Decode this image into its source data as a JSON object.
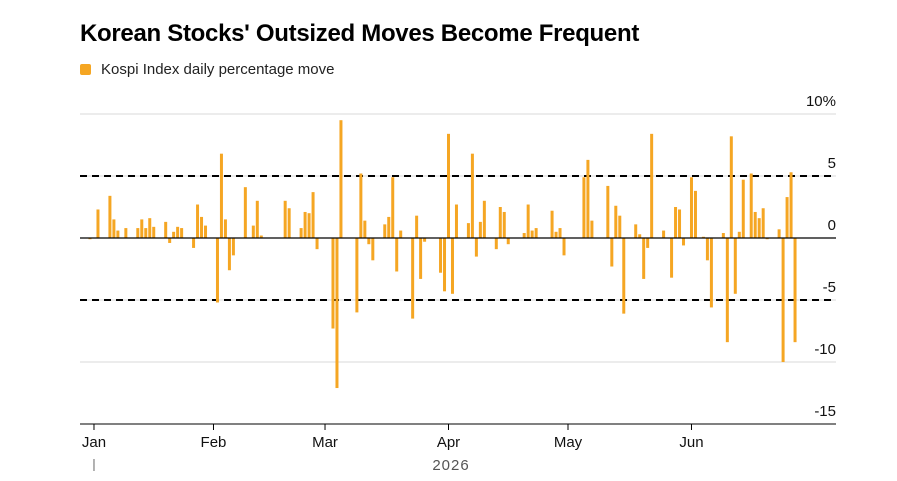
{
  "title": "Korean Stocks' Outsized Moves Become Frequent",
  "legend": [
    {
      "label": "Kospi Index daily percentage move",
      "color": "#f5a623"
    }
  ],
  "chart_data": {
    "type": "bar",
    "title": "Korean Stocks' Outsized Moves Become Frequent",
    "xlabel": "",
    "ylabel": "",
    "series": [
      {
        "name": "Kospi Index daily percentage move",
        "color": "#f5a623"
      }
    ],
    "ylim": [
      -15,
      10
    ],
    "y_ticks": [
      {
        "value": 10,
        "label": "10%"
      },
      {
        "value": 5,
        "label": "5"
      },
      {
        "value": 0,
        "label": "0"
      },
      {
        "value": -5,
        "label": "-5"
      },
      {
        "value": -10,
        "label": "-10"
      },
      {
        "value": -15,
        "label": "-15"
      }
    ],
    "x_ticks": [
      {
        "date": "2026-01-02",
        "label": "Jan"
      },
      {
        "date": "2026-02-01",
        "label": "Feb"
      },
      {
        "date": "2026-03-01",
        "label": "Mar"
      },
      {
        "date": "2026-04-01",
        "label": "Apr"
      },
      {
        "date": "2026-05-01",
        "label": "May"
      },
      {
        "date": "2026-06-01",
        "label": "Jun"
      }
    ],
    "xlim": [
      "2026-01-01",
      "2026-06-30"
    ],
    "x_secondary_label": "2026",
    "reference_lines": [
      5,
      -5
    ],
    "grid": false,
    "legend_position": "top-left",
    "points": [
      [
        "2026-01-01",
        -0.1
      ],
      [
        "2026-01-03",
        2.3
      ],
      [
        "2026-01-06",
        3.4
      ],
      [
        "2026-01-07",
        1.5
      ],
      [
        "2026-01-08",
        0.6
      ],
      [
        "2026-01-10",
        0.8
      ],
      [
        "2026-01-13",
        0.8
      ],
      [
        "2026-01-14",
        1.5
      ],
      [
        "2026-01-15",
        0.8
      ],
      [
        "2026-01-16",
        1.6
      ],
      [
        "2026-01-17",
        0.9
      ],
      [
        "2026-01-20",
        1.3
      ],
      [
        "2026-01-21",
        -0.4
      ],
      [
        "2026-01-22",
        0.5
      ],
      [
        "2026-01-23",
        0.9
      ],
      [
        "2026-01-24",
        0.8
      ],
      [
        "2026-01-27",
        -0.8
      ],
      [
        "2026-01-28",
        2.7
      ],
      [
        "2026-01-29",
        1.7
      ],
      [
        "2026-01-30",
        1.0
      ],
      [
        "2026-02-02",
        -5.2
      ],
      [
        "2026-02-03",
        6.8
      ],
      [
        "2026-02-04",
        1.5
      ],
      [
        "2026-02-05",
        -2.6
      ],
      [
        "2026-02-06",
        -1.4
      ],
      [
        "2026-02-09",
        4.1
      ],
      [
        "2026-02-11",
        1.0
      ],
      [
        "2026-02-12",
        3.0
      ],
      [
        "2026-02-13",
        0.2
      ],
      [
        "2026-02-19",
        3.0
      ],
      [
        "2026-02-20",
        2.4
      ],
      [
        "2026-02-23",
        0.8
      ],
      [
        "2026-02-24",
        2.1
      ],
      [
        "2026-02-25",
        2.0
      ],
      [
        "2026-02-26",
        3.7
      ],
      [
        "2026-02-27",
        -0.9
      ],
      [
        "2026-03-03",
        -7.3
      ],
      [
        "2026-03-04",
        -12.1
      ],
      [
        "2026-03-05",
        9.5
      ],
      [
        "2026-03-09",
        -6.0
      ],
      [
        "2026-03-10",
        5.2
      ],
      [
        "2026-03-11",
        1.4
      ],
      [
        "2026-03-12",
        -0.5
      ],
      [
        "2026-03-13",
        -1.8
      ],
      [
        "2026-03-16",
        1.1
      ],
      [
        "2026-03-17",
        1.7
      ],
      [
        "2026-03-18",
        4.9
      ],
      [
        "2026-03-19",
        -2.7
      ],
      [
        "2026-03-20",
        0.6
      ],
      [
        "2026-03-23",
        -6.5
      ],
      [
        "2026-03-24",
        1.8
      ],
      [
        "2026-03-25",
        -3.3
      ],
      [
        "2026-03-26",
        -0.3
      ],
      [
        "2026-03-30",
        -2.8
      ],
      [
        "2026-03-31",
        -4.3
      ],
      [
        "2026-04-01",
        8.4
      ],
      [
        "2026-04-02",
        -4.5
      ],
      [
        "2026-04-03",
        2.7
      ],
      [
        "2026-04-06",
        1.2
      ],
      [
        "2026-04-07",
        6.8
      ],
      [
        "2026-04-08",
        -1.5
      ],
      [
        "2026-04-09",
        1.3
      ],
      [
        "2026-04-10",
        3.0
      ],
      [
        "2026-04-13",
        -0.9
      ],
      [
        "2026-04-14",
        2.5
      ],
      [
        "2026-04-15",
        2.1
      ],
      [
        "2026-04-16",
        -0.5
      ],
      [
        "2026-04-20",
        0.4
      ],
      [
        "2026-04-21",
        2.7
      ],
      [
        "2026-04-22",
        0.6
      ],
      [
        "2026-04-23",
        0.8
      ],
      [
        "2026-04-27",
        2.2
      ],
      [
        "2026-04-28",
        0.5
      ],
      [
        "2026-04-29",
        0.8
      ],
      [
        "2026-04-30",
        -1.4
      ],
      [
        "2026-05-05",
        4.9
      ],
      [
        "2026-05-06",
        6.3
      ],
      [
        "2026-05-07",
        1.4
      ],
      [
        "2026-05-11",
        4.2
      ],
      [
        "2026-05-12",
        -2.3
      ],
      [
        "2026-05-13",
        2.6
      ],
      [
        "2026-05-14",
        1.8
      ],
      [
        "2026-05-15",
        -6.1
      ],
      [
        "2026-05-18",
        1.1
      ],
      [
        "2026-05-19",
        0.3
      ],
      [
        "2026-05-20",
        -3.3
      ],
      [
        "2026-05-21",
        -0.8
      ],
      [
        "2026-05-22",
        8.4
      ],
      [
        "2026-05-25",
        0.6
      ],
      [
        "2026-05-27",
        -3.2
      ],
      [
        "2026-05-28",
        2.5
      ],
      [
        "2026-05-29",
        2.3
      ],
      [
        "2026-05-30",
        -0.6
      ],
      [
        "2026-06-01",
        4.9
      ],
      [
        "2026-06-02",
        3.8
      ],
      [
        "2026-06-04",
        0.1
      ],
      [
        "2026-06-05",
        -1.8
      ],
      [
        "2026-06-06",
        -5.6
      ],
      [
        "2026-06-09",
        0.4
      ],
      [
        "2026-06-10",
        -8.4
      ],
      [
        "2026-06-11",
        8.2
      ],
      [
        "2026-06-12",
        -4.5
      ],
      [
        "2026-06-13",
        0.5
      ],
      [
        "2026-06-14",
        4.7
      ],
      [
        "2026-06-16",
        5.2
      ],
      [
        "2026-06-17",
        2.1
      ],
      [
        "2026-06-18",
        1.6
      ],
      [
        "2026-06-19",
        2.4
      ],
      [
        "2026-06-20",
        -0.1
      ],
      [
        "2026-06-23",
        0.7
      ],
      [
        "2026-06-24",
        -10.0
      ],
      [
        "2026-06-25",
        3.3
      ],
      [
        "2026-06-26",
        5.3
      ],
      [
        "2026-06-27",
        -8.4
      ]
    ]
  }
}
